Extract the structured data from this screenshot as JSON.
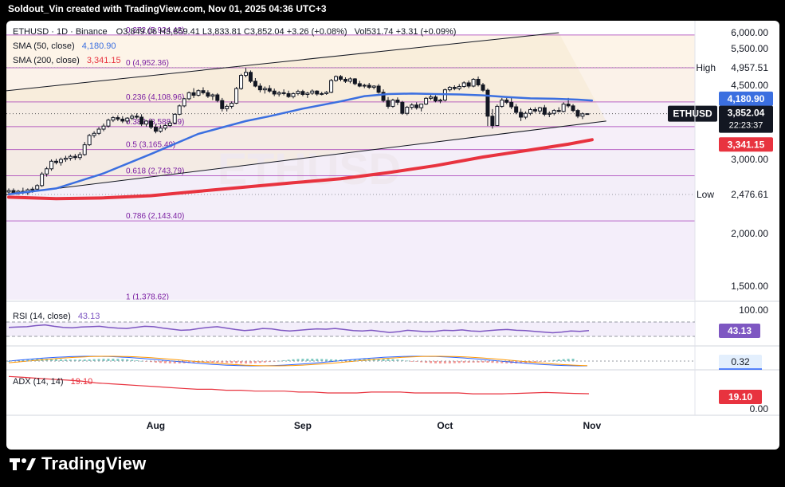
{
  "header": {
    "credit": "Soldout_Vin created with TradingView.com, Nov 01, 2025 04:36 UTC+3"
  },
  "footer": {
    "brand": "TradingView"
  },
  "chart_data": {
    "type": "candlestick",
    "symbol_line": {
      "symbol": "ETHUSD · 1D · Binance",
      "ohlc": "O3,849.06  H3,859.41  L3,833.81  C3,852.04  +3.26 (+0.08%)",
      "vol": "Vol531.74  +3.31 (+0.09%)"
    },
    "price_axis": {
      "ticks": [
        {
          "v": 6000,
          "label": "6,000.00"
        },
        {
          "v": 5500,
          "label": "5,500.00"
        },
        {
          "v": 4500,
          "label": "4,500.00"
        },
        {
          "v": 3000,
          "label": "3,000.00"
        },
        {
          "v": 2000,
          "label": "2,000.00"
        },
        {
          "v": 1500,
          "label": "1,500.00"
        }
      ],
      "range": [
        1280,
        6100
      ]
    },
    "time_axis": [
      {
        "label": "Aug",
        "day": 31
      },
      {
        "label": "Sep",
        "day": 62
      },
      {
        "label": "Oct",
        "day": 92
      },
      {
        "label": "Nov",
        "day": 123
      }
    ],
    "candles": [
      {
        "d": 0,
        "o": 2510,
        "h": 2560,
        "l": 2480,
        "c": 2530
      },
      {
        "d": 1,
        "o": 2530,
        "h": 2560,
        "l": 2490,
        "c": 2500
      },
      {
        "d": 2,
        "o": 2500,
        "h": 2540,
        "l": 2470,
        "c": 2520
      },
      {
        "d": 3,
        "o": 2520,
        "h": 2570,
        "l": 2480,
        "c": 2500
      },
      {
        "d": 4,
        "o": 2500,
        "h": 2560,
        "l": 2470,
        "c": 2540
      },
      {
        "d": 5,
        "o": 2540,
        "h": 2580,
        "l": 2500,
        "c": 2550
      },
      {
        "d": 6,
        "o": 2550,
        "h": 2620,
        "l": 2520,
        "c": 2600
      },
      {
        "d": 7,
        "o": 2600,
        "h": 2800,
        "l": 2580,
        "c": 2770
      },
      {
        "d": 8,
        "o": 2770,
        "h": 2880,
        "l": 2730,
        "c": 2850
      },
      {
        "d": 9,
        "o": 2850,
        "h": 3000,
        "l": 2820,
        "c": 2970
      },
      {
        "d": 10,
        "o": 2970,
        "h": 3010,
        "l": 2920,
        "c": 2950
      },
      {
        "d": 11,
        "o": 2950,
        "h": 3030,
        "l": 2900,
        "c": 3000
      },
      {
        "d": 12,
        "o": 3000,
        "h": 3060,
        "l": 2960,
        "c": 3020
      },
      {
        "d": 13,
        "o": 3020,
        "h": 3080,
        "l": 2980,
        "c": 3050
      },
      {
        "d": 14,
        "o": 3050,
        "h": 3090,
        "l": 2990,
        "c": 3030
      },
      {
        "d": 15,
        "o": 3030,
        "h": 3120,
        "l": 2990,
        "c": 3080
      },
      {
        "d": 16,
        "o": 3080,
        "h": 3300,
        "l": 3060,
        "c": 3250
      },
      {
        "d": 17,
        "o": 3250,
        "h": 3450,
        "l": 3230,
        "c": 3420
      },
      {
        "d": 18,
        "o": 3420,
        "h": 3500,
        "l": 3380,
        "c": 3460
      },
      {
        "d": 19,
        "o": 3460,
        "h": 3580,
        "l": 3430,
        "c": 3540
      },
      {
        "d": 20,
        "o": 3540,
        "h": 3650,
        "l": 3500,
        "c": 3600
      },
      {
        "d": 21,
        "o": 3600,
        "h": 3750,
        "l": 3570,
        "c": 3720
      },
      {
        "d": 22,
        "o": 3720,
        "h": 3800,
        "l": 3680,
        "c": 3770
      },
      {
        "d": 23,
        "o": 3770,
        "h": 3820,
        "l": 3700,
        "c": 3740
      },
      {
        "d": 24,
        "o": 3740,
        "h": 3800,
        "l": 3660,
        "c": 3700
      },
      {
        "d": 25,
        "o": 3700,
        "h": 3780,
        "l": 3650,
        "c": 3760
      },
      {
        "d": 26,
        "o": 3760,
        "h": 3840,
        "l": 3720,
        "c": 3800
      },
      {
        "d": 27,
        "o": 3800,
        "h": 3860,
        "l": 3740,
        "c": 3780
      },
      {
        "d": 28,
        "o": 3780,
        "h": 3840,
        "l": 3600,
        "c": 3640
      },
      {
        "d": 29,
        "o": 3640,
        "h": 3720,
        "l": 3590,
        "c": 3700
      },
      {
        "d": 30,
        "o": 3700,
        "h": 3740,
        "l": 3540,
        "c": 3580
      },
      {
        "d": 31,
        "o": 3580,
        "h": 3640,
        "l": 3460,
        "c": 3500
      },
      {
        "d": 32,
        "o": 3500,
        "h": 3620,
        "l": 3470,
        "c": 3560
      },
      {
        "d": 33,
        "o": 3560,
        "h": 3640,
        "l": 3520,
        "c": 3610
      },
      {
        "d": 34,
        "o": 3610,
        "h": 3700,
        "l": 3580,
        "c": 3660
      },
      {
        "d": 35,
        "o": 3660,
        "h": 3860,
        "l": 3640,
        "c": 3840
      },
      {
        "d": 36,
        "o": 3840,
        "h": 4050,
        "l": 3820,
        "c": 4020
      },
      {
        "d": 37,
        "o": 4020,
        "h": 4200,
        "l": 3990,
        "c": 4180
      },
      {
        "d": 38,
        "o": 4180,
        "h": 4350,
        "l": 4150,
        "c": 4320
      },
      {
        "d": 39,
        "o": 4320,
        "h": 4430,
        "l": 4200,
        "c": 4260
      },
      {
        "d": 40,
        "o": 4260,
        "h": 4400,
        "l": 4230,
        "c": 4370
      },
      {
        "d": 41,
        "o": 4370,
        "h": 4450,
        "l": 4280,
        "c": 4320
      },
      {
        "d": 42,
        "o": 4320,
        "h": 4380,
        "l": 4200,
        "c": 4240
      },
      {
        "d": 43,
        "o": 4240,
        "h": 4300,
        "l": 4150,
        "c": 4270
      },
      {
        "d": 44,
        "o": 4270,
        "h": 4310,
        "l": 4100,
        "c": 4140
      },
      {
        "d": 45,
        "o": 4140,
        "h": 4200,
        "l": 3900,
        "c": 3960
      },
      {
        "d": 46,
        "o": 3960,
        "h": 4050,
        "l": 3900,
        "c": 4010
      },
      {
        "d": 47,
        "o": 4010,
        "h": 4120,
        "l": 3960,
        "c": 4080
      },
      {
        "d": 48,
        "o": 4080,
        "h": 4460,
        "l": 4060,
        "c": 4420
      },
      {
        "d": 49,
        "o": 4420,
        "h": 4790,
        "l": 4390,
        "c": 4750
      },
      {
        "d": 50,
        "o": 4750,
        "h": 4950,
        "l": 4700,
        "c": 4830
      },
      {
        "d": 51,
        "o": 4830,
        "h": 4880,
        "l": 4560,
        "c": 4600
      },
      {
        "d": 52,
        "o": 4600,
        "h": 4680,
        "l": 4450,
        "c": 4480
      },
      {
        "d": 53,
        "o": 4480,
        "h": 4550,
        "l": 4330,
        "c": 4390
      },
      {
        "d": 54,
        "o": 4390,
        "h": 4470,
        "l": 4300,
        "c": 4420
      },
      {
        "d": 55,
        "o": 4420,
        "h": 4500,
        "l": 4320,
        "c": 4360
      },
      {
        "d": 56,
        "o": 4360,
        "h": 4420,
        "l": 4240,
        "c": 4290
      },
      {
        "d": 57,
        "o": 4290,
        "h": 4360,
        "l": 4230,
        "c": 4320
      },
      {
        "d": 58,
        "o": 4320,
        "h": 4400,
        "l": 4260,
        "c": 4300
      },
      {
        "d": 59,
        "o": 4300,
        "h": 4370,
        "l": 4200,
        "c": 4230
      },
      {
        "d": 60,
        "o": 4230,
        "h": 4330,
        "l": 4190,
        "c": 4300
      },
      {
        "d": 61,
        "o": 4300,
        "h": 4390,
        "l": 4260,
        "c": 4350
      },
      {
        "d": 62,
        "o": 4350,
        "h": 4390,
        "l": 4240,
        "c": 4280
      },
      {
        "d": 63,
        "o": 4280,
        "h": 4340,
        "l": 4200,
        "c": 4310
      },
      {
        "d": 64,
        "o": 4310,
        "h": 4400,
        "l": 4270,
        "c": 4360
      },
      {
        "d": 65,
        "o": 4360,
        "h": 4380,
        "l": 4250,
        "c": 4290
      },
      {
        "d": 66,
        "o": 4290,
        "h": 4340,
        "l": 4260,
        "c": 4300
      },
      {
        "d": 67,
        "o": 4300,
        "h": 4360,
        "l": 4270,
        "c": 4330
      },
      {
        "d": 68,
        "o": 4330,
        "h": 4660,
        "l": 4310,
        "c": 4620
      },
      {
        "d": 69,
        "o": 4620,
        "h": 4750,
        "l": 4590,
        "c": 4720
      },
      {
        "d": 70,
        "o": 4720,
        "h": 4760,
        "l": 4600,
        "c": 4650
      },
      {
        "d": 71,
        "o": 4650,
        "h": 4700,
        "l": 4560,
        "c": 4600
      },
      {
        "d": 72,
        "o": 4600,
        "h": 4700,
        "l": 4550,
        "c": 4660
      },
      {
        "d": 73,
        "o": 4660,
        "h": 4680,
        "l": 4500,
        "c": 4540
      },
      {
        "d": 74,
        "o": 4540,
        "h": 4610,
        "l": 4450,
        "c": 4480
      },
      {
        "d": 75,
        "o": 4480,
        "h": 4540,
        "l": 4430,
        "c": 4500
      },
      {
        "d": 76,
        "o": 4500,
        "h": 4560,
        "l": 4410,
        "c": 4450
      },
      {
        "d": 77,
        "o": 4450,
        "h": 4500,
        "l": 4400,
        "c": 4480
      },
      {
        "d": 78,
        "o": 4480,
        "h": 4530,
        "l": 4300,
        "c": 4330
      },
      {
        "d": 79,
        "o": 4330,
        "h": 4400,
        "l": 4100,
        "c": 4140
      },
      {
        "d": 80,
        "o": 4140,
        "h": 4220,
        "l": 3960,
        "c": 4010
      },
      {
        "d": 81,
        "o": 4010,
        "h": 4180,
        "l": 3980,
        "c": 4150
      },
      {
        "d": 82,
        "o": 4150,
        "h": 4210,
        "l": 4040,
        "c": 4100
      },
      {
        "d": 83,
        "o": 4100,
        "h": 4130,
        "l": 3830,
        "c": 3860
      },
      {
        "d": 84,
        "o": 3860,
        "h": 4020,
        "l": 3820,
        "c": 3990
      },
      {
        "d": 85,
        "o": 3990,
        "h": 4080,
        "l": 3940,
        "c": 4040
      },
      {
        "d": 86,
        "o": 4040,
        "h": 4100,
        "l": 3940,
        "c": 3980
      },
      {
        "d": 87,
        "o": 3980,
        "h": 4070,
        "l": 3900,
        "c": 4060
      },
      {
        "d": 88,
        "o": 4060,
        "h": 4220,
        "l": 4040,
        "c": 4190
      },
      {
        "d": 89,
        "o": 4190,
        "h": 4280,
        "l": 4150,
        "c": 4220
      },
      {
        "d": 90,
        "o": 4220,
        "h": 4260,
        "l": 4100,
        "c": 4130
      },
      {
        "d": 91,
        "o": 4130,
        "h": 4180,
        "l": 4080,
        "c": 4150
      },
      {
        "d": 92,
        "o": 4150,
        "h": 4420,
        "l": 4120,
        "c": 4390
      },
      {
        "d": 93,
        "o": 4390,
        "h": 4480,
        "l": 4350,
        "c": 4450
      },
      {
        "d": 94,
        "o": 4450,
        "h": 4500,
        "l": 4380,
        "c": 4420
      },
      {
        "d": 95,
        "o": 4420,
        "h": 4530,
        "l": 4380,
        "c": 4470
      },
      {
        "d": 96,
        "o": 4470,
        "h": 4600,
        "l": 4440,
        "c": 4560
      },
      {
        "d": 97,
        "o": 4560,
        "h": 4620,
        "l": 4430,
        "c": 4480
      },
      {
        "d": 98,
        "o": 4480,
        "h": 4680,
        "l": 4450,
        "c": 4650
      },
      {
        "d": 99,
        "o": 4650,
        "h": 4720,
        "l": 4470,
        "c": 4510
      },
      {
        "d": 100,
        "o": 4510,
        "h": 4560,
        "l": 4340,
        "c": 4380
      },
      {
        "d": 101,
        "o": 4380,
        "h": 4420,
        "l": 3600,
        "c": 3800
      },
      {
        "d": 102,
        "o": 3800,
        "h": 3950,
        "l": 3550,
        "c": 3610
      },
      {
        "d": 103,
        "o": 3610,
        "h": 4050,
        "l": 3600,
        "c": 4010
      },
      {
        "d": 104,
        "o": 4010,
        "h": 4200,
        "l": 3980,
        "c": 4150
      },
      {
        "d": 105,
        "o": 4150,
        "h": 4240,
        "l": 4060,
        "c": 4100
      },
      {
        "d": 106,
        "o": 4100,
        "h": 4200,
        "l": 3950,
        "c": 4000
      },
      {
        "d": 107,
        "o": 4000,
        "h": 4060,
        "l": 3840,
        "c": 3880
      },
      {
        "d": 108,
        "o": 3880,
        "h": 3960,
        "l": 3700,
        "c": 3780
      },
      {
        "d": 109,
        "o": 3780,
        "h": 3900,
        "l": 3740,
        "c": 3860
      },
      {
        "d": 110,
        "o": 3860,
        "h": 3980,
        "l": 3820,
        "c": 3940
      },
      {
        "d": 111,
        "o": 3940,
        "h": 3990,
        "l": 3870,
        "c": 3910
      },
      {
        "d": 112,
        "o": 3910,
        "h": 4000,
        "l": 3850,
        "c": 3980
      },
      {
        "d": 113,
        "o": 3980,
        "h": 4040,
        "l": 3800,
        "c": 3840
      },
      {
        "d": 114,
        "o": 3840,
        "h": 3900,
        "l": 3780,
        "c": 3860
      },
      {
        "d": 115,
        "o": 3860,
        "h": 3950,
        "l": 3820,
        "c": 3920
      },
      {
        "d": 116,
        "o": 3920,
        "h": 3990,
        "l": 3880,
        "c": 3900
      },
      {
        "d": 117,
        "o": 3900,
        "h": 4100,
        "l": 3880,
        "c": 4060
      },
      {
        "d": 118,
        "o": 4060,
        "h": 4200,
        "l": 3980,
        "c": 4020
      },
      {
        "d": 119,
        "o": 4020,
        "h": 4060,
        "l": 3880,
        "c": 3920
      },
      {
        "d": 120,
        "o": 3920,
        "h": 3950,
        "l": 3760,
        "c": 3800
      },
      {
        "d": 121,
        "o": 3800,
        "h": 3880,
        "l": 3740,
        "c": 3849
      },
      {
        "d": 122,
        "o": 3849.06,
        "h": 3859.41,
        "l": 3833.81,
        "c": 3852.04
      }
    ],
    "sma50": {
      "name": "SMA (50, close)",
      "value": "4,180.90",
      "color": "#3b6fe0",
      "points": [
        [
          0,
          2480
        ],
        [
          10,
          2560
        ],
        [
          20,
          2780
        ],
        [
          30,
          3090
        ],
        [
          40,
          3450
        ],
        [
          50,
          3700
        ],
        [
          55,
          3800
        ],
        [
          62,
          3960
        ],
        [
          70,
          4120
        ],
        [
          75,
          4240
        ],
        [
          80,
          4290
        ],
        [
          85,
          4300
        ],
        [
          90,
          4290
        ],
        [
          95,
          4280
        ],
        [
          100,
          4260
        ],
        [
          105,
          4220
        ],
        [
          110,
          4190
        ],
        [
          115,
          4180
        ],
        [
          120,
          4160
        ],
        [
          123,
          4140
        ]
      ]
    },
    "sma200": {
      "name": "SMA (200, close)",
      "value": "3,341.15",
      "color": "#e8333f",
      "points": [
        [
          0,
          2440
        ],
        [
          10,
          2420
        ],
        [
          20,
          2430
        ],
        [
          30,
          2460
        ],
        [
          40,
          2520
        ],
        [
          50,
          2580
        ],
        [
          60,
          2640
        ],
        [
          70,
          2700
        ],
        [
          80,
          2790
        ],
        [
          90,
          2900
        ],
        [
          100,
          3040
        ],
        [
          110,
          3160
        ],
        [
          118,
          3260
        ],
        [
          123,
          3341
        ]
      ]
    },
    "fib_levels": [
      {
        "label": "0.272 (5,924.42)",
        "v": 5924.42
      },
      {
        "label": "0 (4,952.36)",
        "v": 4952.36
      },
      {
        "label": "0.236 (4,108.96)",
        "v": 4108.96
      },
      {
        "label": "0.382 (3,588.19)",
        "v": 3588.19
      },
      {
        "label": "0.5 (3,165.49)",
        "v": 3165.49
      },
      {
        "label": "0.618 (2,743.79)",
        "v": 2743.79
      },
      {
        "label": "0.786 (2,143.40)",
        "v": 2143.4
      },
      {
        "label": "1 (1,378.62)",
        "v": 1378.62
      }
    ],
    "channel": {
      "upper": [
        [
          -1,
          4360
        ],
        [
          116,
          6000
        ]
      ],
      "lower": [
        [
          -1,
          2470
        ],
        [
          126,
          3700
        ]
      ]
    },
    "price_markers": {
      "high_label": "High",
      "high_value": "4,957.51",
      "low_label": "Low",
      "low_value": "2,476.61",
      "symbol_badge": "ETHUSD",
      "last_price": "3,852.04",
      "countdown": "22:23:37",
      "sma50_badge": "4,180.90",
      "sma200_badge": "3,341.15"
    },
    "watermark": "ETHUSD",
    "rsi": {
      "name": "RSI (14, close)",
      "value": "43.13",
      "axis_label": "100.00",
      "values": [
        55,
        56,
        57,
        60,
        62,
        58,
        55,
        54,
        56,
        57,
        58,
        55,
        53,
        52,
        55,
        58,
        57,
        53,
        50,
        47,
        48,
        52,
        55,
        57,
        53,
        49,
        46,
        48,
        52,
        51,
        47,
        45,
        47,
        49,
        51,
        50,
        52,
        49,
        46,
        45,
        47,
        44,
        41,
        43,
        47,
        45,
        43,
        44,
        47,
        46,
        48,
        45,
        44,
        46,
        48,
        49,
        47,
        46,
        44,
        42,
        40,
        42,
        45,
        44,
        46
      ]
    },
    "macd": {
      "value": "0.32"
    },
    "adx": {
      "name": "ADX (14, 14)",
      "value": "19.10",
      "axis_label": "0.00",
      "values": [
        38,
        37,
        36,
        35,
        34,
        33,
        31,
        30,
        29,
        28,
        27,
        26,
        25,
        24,
        24,
        23,
        23,
        22,
        22,
        22,
        21,
        21,
        20,
        20,
        20,
        21,
        21,
        21,
        20,
        20,
        20,
        20,
        19,
        19,
        19,
        19.5,
        20,
        20.5,
        20,
        19.5,
        19.1
      ]
    }
  }
}
